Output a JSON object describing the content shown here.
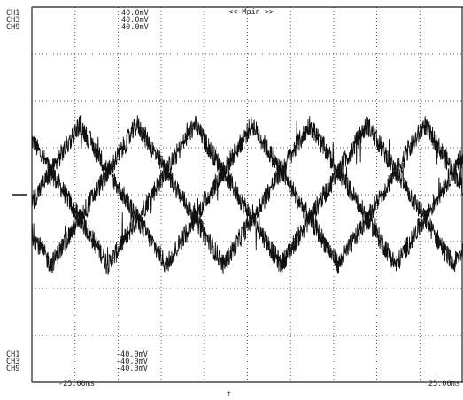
{
  "chart_data": {
    "type": "line",
    "title": "<< Main >>",
    "x_start_label": "-25.00ms",
    "x_end_label": "25.00ms",
    "trigger_marker": "t",
    "xlim": [
      -25,
      25
    ],
    "x_unit": "ms",
    "ylim": [
      -40,
      40
    ],
    "y_unit": "mV",
    "grid": true,
    "grid_divisions": {
      "x": 10,
      "y": 8
    },
    "channels_top": [
      {
        "name": "CH1",
        "scale": "40.0mV"
      },
      {
        "name": "CH3",
        "scale": "40.0mV"
      },
      {
        "name": "CH9",
        "scale": "40.0mV"
      }
    ],
    "channels_bottom": [
      {
        "name": "CH1",
        "scale": "-40.0mV"
      },
      {
        "name": "CH3",
        "scale": "-40.0mV"
      },
      {
        "name": "CH9",
        "scale": "-40.0mV"
      }
    ],
    "series": [
      {
        "name": "CH1",
        "shape": "triangle",
        "period_ms": 20,
        "amplitude_mV": 15,
        "phase_deg": -70,
        "noise_mV": 2.2
      },
      {
        "name": "CH3",
        "shape": "triangle",
        "period_ms": 20,
        "amplitude_mV": 15,
        "phase_deg": 50,
        "noise_mV": 2.2
      },
      {
        "name": "CH9",
        "shape": "triangle",
        "period_ms": 20,
        "amplitude_mV": 15,
        "phase_deg": 170,
        "noise_mV": 2.2
      }
    ],
    "colors": {
      "trace": "#111111",
      "grid": "#555555",
      "frame": "#222222",
      "background": "#ffffff"
    }
  }
}
